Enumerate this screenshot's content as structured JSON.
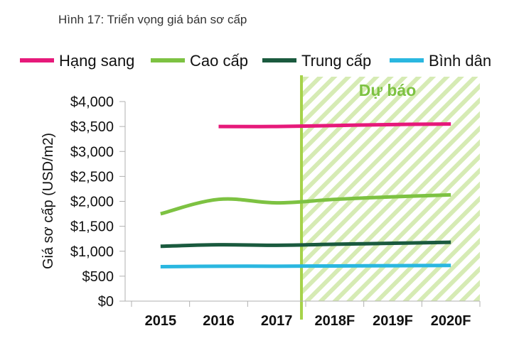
{
  "figure_title": "Hình 17: Triển vọng giá bán sơ cấp",
  "colors": {
    "hang_sang": "#e6197a",
    "cao_cap": "#7dc242",
    "trung_cap": "#1a5a3e",
    "binh_dan": "#2ab7e0",
    "forecast_line": "#a6d34a",
    "forecast_hatch": "#d6ebb4",
    "forecast_text": "#7dc242"
  },
  "chart_data": {
    "type": "line",
    "title": "",
    "ylabel": "Giá sơ cấp (USD/m2)",
    "xlabel": "",
    "categories": [
      "2015",
      "2016",
      "2017",
      "2018F",
      "2019F",
      "2020F"
    ],
    "ylim": [
      0,
      4000
    ],
    "yticks": [
      {
        "value": 0,
        "label": "$0"
      },
      {
        "value": 500,
        "label": "$500"
      },
      {
        "value": 1000,
        "label": "$1,000"
      },
      {
        "value": 1500,
        "label": "$1,500"
      },
      {
        "value": 2000,
        "label": "$2,000"
      },
      {
        "value": 2500,
        "label": "$2,500"
      },
      {
        "value": 3000,
        "label": "$3,000"
      },
      {
        "value": 3500,
        "label": "$3,500"
      },
      {
        "value": 4000,
        "label": "$4,000"
      }
    ],
    "legend_position": "top",
    "forecast": {
      "label": "Dự báo",
      "start_between": [
        "2017",
        "2018F"
      ]
    },
    "series": [
      {
        "name": "Hạng sang",
        "color_key": "hang_sang",
        "values": [
          null,
          3500,
          3500,
          3520,
          3540,
          3550
        ]
      },
      {
        "name": "Cao cấp",
        "color_key": "cao_cap",
        "values": [
          1750,
          2040,
          1970,
          2040,
          2090,
          2130
        ]
      },
      {
        "name": "Trung cấp",
        "color_key": "trung_cap",
        "values": [
          1100,
          1130,
          1120,
          1140,
          1160,
          1180
        ]
      },
      {
        "name": "Bình dân",
        "color_key": "binh_dan",
        "values": [
          690,
          700,
          700,
          705,
          710,
          715
        ]
      }
    ]
  }
}
